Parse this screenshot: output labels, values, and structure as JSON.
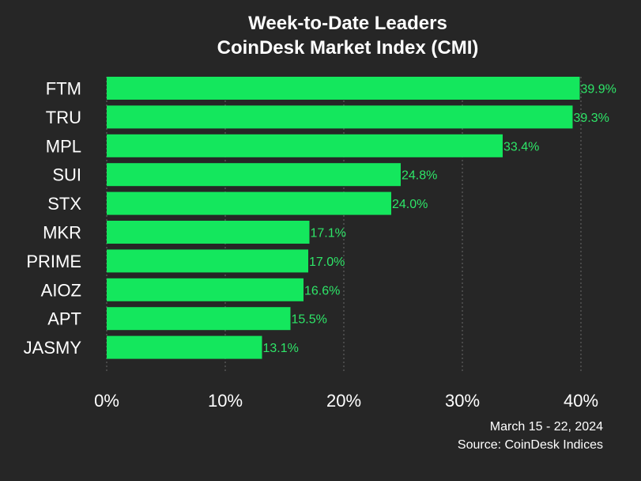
{
  "chart_data": {
    "type": "bar",
    "orientation": "horizontal",
    "title": "Week-to-Date Leaders",
    "subtitle": "CoinDesk Market Index (CMI)",
    "categories": [
      "FTM",
      "TRU",
      "MPL",
      "SUI",
      "STX",
      "MKR",
      "PRIME",
      "AIOZ",
      "APT",
      "JASMY"
    ],
    "values": [
      39.9,
      39.3,
      33.4,
      24.8,
      24.0,
      17.1,
      17.0,
      16.6,
      15.5,
      13.1
    ],
    "value_labels": [
      "39.9%",
      "39.3%",
      "33.4%",
      "24.8%",
      "24.0%",
      "17.1%",
      "17.0%",
      "16.6%",
      "15.5%",
      "13.1%"
    ],
    "xlim": [
      0,
      40
    ],
    "xticks": [
      0,
      10,
      20,
      30,
      40
    ],
    "xtick_labels": [
      "0%",
      "10%",
      "20%",
      "30%",
      "40%"
    ],
    "grid": true,
    "legend": false,
    "date_range": "March 15 - 22, 2024",
    "source": "Source: CoinDesk Indices",
    "colors": {
      "background": "#262626",
      "bar": "#14e75d",
      "value_label": "#2ee568",
      "text": "#ffffff"
    }
  }
}
